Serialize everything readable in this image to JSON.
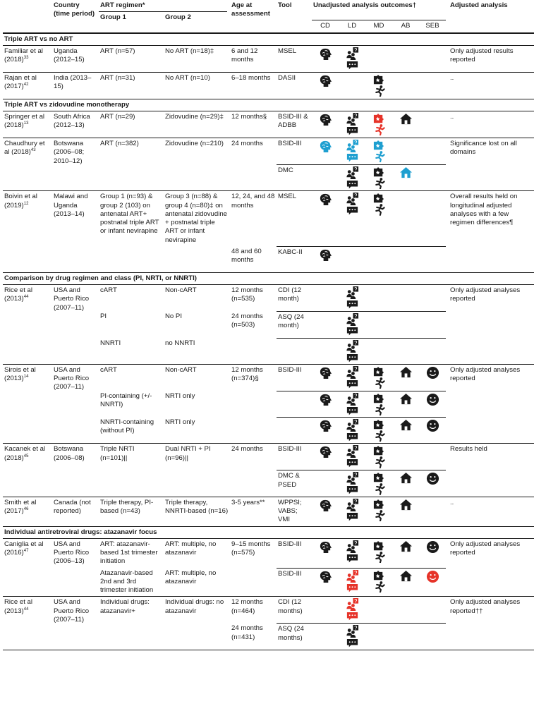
{
  "header": {
    "country": "Country (time period)",
    "regimen": "ART regimen*",
    "group1": "Group 1",
    "group2": "Group 2",
    "age": "Age at assessment",
    "tool": "Tool",
    "outcomes": "Unadjusted analysis outcomes†",
    "outcome_cols": [
      "CD",
      "LD",
      "MD",
      "AB",
      "SEB"
    ],
    "adjusted": "Adjusted analysis"
  },
  "sections": [
    {
      "title": "Triple ART vs no ART",
      "studies": [
        {
          "study": "Familiar et al (2018)",
          "ref": "33",
          "country": "Uganda (2012–15)",
          "adjusted": "Only adjusted results reported",
          "rows": [
            {
              "group1": "ART (n=57)",
              "group2": "No ART (n=18)‡",
              "age": "6 and 12 months",
              "tool": "MSEL",
              "outcomes": [
                "#1a1a1a",
                "#1a1a1a",
                null,
                null,
                null
              ]
            }
          ]
        },
        {
          "study": "Rajan et al (2017)",
          "ref": "42",
          "country": "India (2013–15)",
          "adjusted": "..",
          "rows": [
            {
              "group1": "ART (n=31)",
              "group2": "No ART (n=10)",
              "age": "6–18 months",
              "tool": "DASII",
              "outcomes": [
                "#1a1a1a",
                null,
                "#1a1a1a",
                null,
                null
              ]
            }
          ]
        }
      ]
    },
    {
      "title": "Triple ART vs zidovudine monotherapy",
      "studies": [
        {
          "study": "Springer et al (2018)",
          "ref": "13",
          "country": "South Africa (2012–13)",
          "adjusted": "..",
          "rows": [
            {
              "group1": "ART (n=29)",
              "group2": "Zidovudine (n=29)‡",
              "age": "12 months§",
              "tool": "BSID-III & ADBB",
              "outcomes": [
                "#1a1a1a",
                "#1a1a1a",
                "#e63329",
                "#1a1a1a",
                null
              ]
            }
          ]
        },
        {
          "study": "Chaudhury et al (2018)",
          "ref": "43",
          "country": "Botswana (2006–08; 2010–12)",
          "adjusted": "Significance lost on all domains",
          "rows": [
            {
              "group1": "ART (n=382)",
              "group2": "Zidovudine (n=210)",
              "age": "24 months",
              "tool": "BSID-III",
              "outcomes": [
                "#1e9fd0",
                "#1e9fd0",
                "#1e9fd0",
                null,
                null
              ]
            },
            {
              "group1": null,
              "group2": null,
              "age": null,
              "tool": "DMC",
              "outcomes": [
                null,
                "#1a1a1a",
                "#1a1a1a",
                "#1e9fd0",
                null
              ]
            }
          ]
        },
        {
          "study": "Boivin et al (2019)",
          "ref": "12",
          "country": "Malawi and Uganda (2013–14)",
          "adjusted": "Overall results held on longitudinal adjusted analyses with a few regimen differences¶",
          "rows": [
            {
              "group1": "Group 1 (n=93) & group 2 (103) on antenatal ART+ postnatal triple ART or infant nevirapine",
              "group2": "Group 3 (n=88) & group 4 (n=80)‡ on antenatal zidovudine + postnatal triple ART or infant nevirapine",
              "age": "12, 24, and 48 months",
              "tool": "MSEL",
              "outcomes": [
                "#1a1a1a",
                "#1a1a1a",
                "#1a1a1a",
                null,
                null
              ]
            },
            {
              "group1": null,
              "group2": null,
              "age": "48 and 60 months",
              "tool": "KABC-II",
              "outcomes": [
                "#1a1a1a",
                null,
                null,
                null,
                null
              ]
            }
          ]
        }
      ]
    },
    {
      "title": "Comparison by drug regimen and class (PI, NRTI, or NNRTI)",
      "studies": [
        {
          "study": "Rice et al (2013)",
          "ref": "44",
          "country": "USA and Puerto Rico (2007–11)",
          "adjusted": "Only adjusted analyses reported",
          "rows": [
            {
              "group1": "cART",
              "group2": "Non-cART",
              "age": "12 months (n=535)",
              "tool": "CDI (12 month)",
              "outcomes": [
                null,
                "#1a1a1a",
                null,
                null,
                null
              ]
            },
            {
              "group1": "PI",
              "group2": "No PI",
              "age": "24 months (n=503)",
              "tool": "ASQ (24 month)",
              "outcomes": [
                null,
                "#1a1a1a",
                null,
                null,
                null
              ]
            },
            {
              "group1": "NNRTI",
              "group2": "no NNRTI",
              "age": null,
              "tool": null,
              "outcomes": [
                null,
                "#1a1a1a",
                null,
                null,
                null
              ]
            }
          ]
        },
        {
          "study": "Sirois et al (2013)",
          "ref": "14",
          "country": "USA and Puerto Rico (2007–11)",
          "adjusted": "Only adjusted analyses reported",
          "rows": [
            {
              "group1": "cART",
              "group2": "Non-cART",
              "age": "12 months (n=374)§",
              "tool": "BSID-III",
              "outcomes": [
                "#1a1a1a",
                "#1a1a1a",
                "#1a1a1a",
                "#1a1a1a",
                "#1a1a1a"
              ]
            },
            {
              "group1": "PI-containing (+/- NNRTI)",
              "group2": "NRTI only",
              "age": null,
              "tool": null,
              "outcomes": [
                "#1a1a1a",
                "#1a1a1a",
                "#1a1a1a",
                "#1a1a1a",
                "#1a1a1a"
              ]
            },
            {
              "group1": "NNRTI-containing (without PI)",
              "group2": "NRTI only",
              "age": null,
              "tool": null,
              "outcomes": [
                "#1a1a1a",
                "#1a1a1a",
                "#1a1a1a",
                "#1a1a1a",
                "#1a1a1a"
              ]
            }
          ]
        },
        {
          "study": "Kacanek et al (2018)",
          "ref": "45",
          "country": "Botswana (2006–08)",
          "adjusted": "Results held",
          "rows": [
            {
              "group1": "Triple NRTI (n=101)||",
              "group2": "Dual NRTI + PI (n=96)||",
              "age": "24 months",
              "tool": "BSID-III",
              "outcomes": [
                "#1a1a1a",
                "#1a1a1a",
                "#1a1a1a",
                null,
                null
              ]
            },
            {
              "group1": null,
              "group2": null,
              "age": null,
              "tool": "DMC & PSED",
              "outcomes": [
                null,
                "#1a1a1a",
                "#1a1a1a",
                "#1a1a1a",
                "#1a1a1a"
              ]
            }
          ]
        },
        {
          "study": "Smith et al (2017)",
          "ref": "46",
          "country": "Canada (not reported)",
          "adjusted": "..",
          "rows": [
            {
              "group1": "Triple therapy, PI-based (n=43)",
              "group2": "Triple therapy, NNRTI-based (n=16)",
              "age": "3-5 years**",
              "tool": "WPPSI; VABS; VMI",
              "outcomes": [
                "#1a1a1a",
                "#1a1a1a",
                "#1a1a1a",
                "#1a1a1a",
                null
              ]
            }
          ]
        }
      ]
    },
    {
      "title": "Individual antiretroviral drugs: atazanavir focus",
      "studies": [
        {
          "study": "Caniglia et al (2016)",
          "ref": "47",
          "country": "USA and Puerto Rico (2006–13)",
          "adjusted": "Only adjusted analyses reported",
          "rows": [
            {
              "group1": "ART: atazanavir-based 1st trimester initiation",
              "group2": "ART: multiple, no atazanavir",
              "age": "9–15 months (n=575)",
              "tool": "BSID-III",
              "outcomes": [
                "#1a1a1a",
                "#1a1a1a",
                "#1a1a1a",
                "#1a1a1a",
                "#1a1a1a"
              ]
            },
            {
              "group1": "Atazanavir-based 2nd and 3rd trimester initiation",
              "group2": "ART: multiple, no atazanavir",
              "age": null,
              "tool": "BSID-III",
              "outcomes": [
                "#1a1a1a",
                "#e63329",
                "#1a1a1a",
                "#1a1a1a",
                "#e63329"
              ]
            }
          ]
        },
        {
          "study": "Rice et al (2013)",
          "ref": "44",
          "country": "USA and Puerto Rico (2007–11)",
          "adjusted": "Only adjusted analyses reported††",
          "rows": [
            {
              "group1": "Individual drugs: atazanavir+",
              "group2": "Individual drugs: no atazanavir",
              "age": "12 months (n=464)",
              "tool": "CDI (12 months)",
              "outcomes": [
                null,
                "#e63329",
                null,
                null,
                null
              ]
            },
            {
              "group1": null,
              "group2": null,
              "age": "24 months (n=431)",
              "tool": "ASQ (24 months)",
              "outcomes": [
                null,
                "#1a1a1a",
                null,
                null,
                null
              ]
            }
          ]
        }
      ]
    }
  ]
}
